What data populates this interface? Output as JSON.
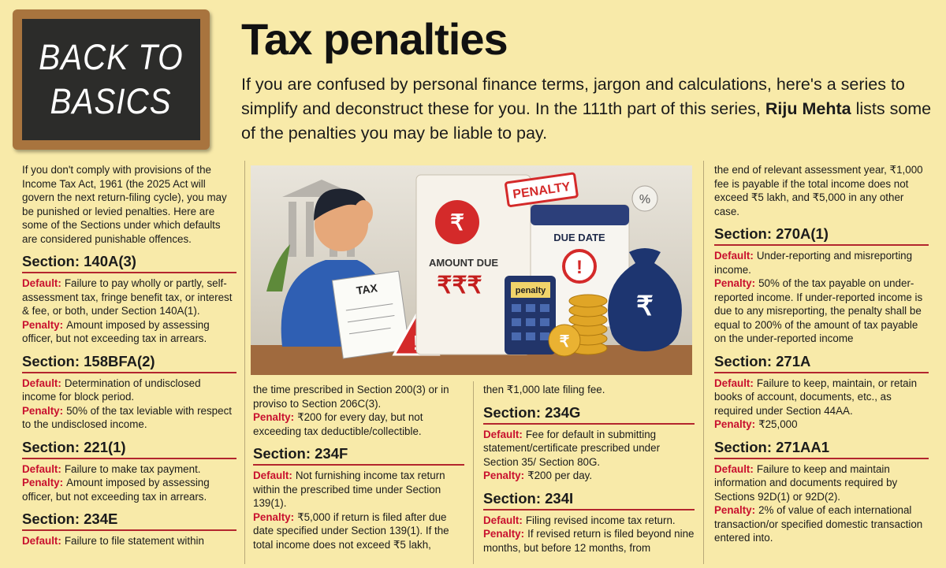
{
  "header": {
    "badge": [
      "BACK TO",
      "BASICS"
    ],
    "title": "Tax penalties",
    "intro": [
      "If you are confused by personal finance terms, jargon and calculations, here's a series to simplify and deconstruct these for you. In the 111th part of this series,",
      "Riju Mehta",
      "lists some of the penalties you may be liable to pay."
    ]
  },
  "illustration": {
    "tax": "TAX",
    "penalty_stamp": "PENALTY",
    "amount_due": "AMOUNT DUE",
    "rupees": "₹₹₹",
    "rupee": "₹",
    "due_date": "DUE DATE",
    "calculator": "penalty",
    "percent": "%",
    "alert": "!"
  },
  "columns": [
    {
      "items": [
        {
          "text": "If you don't comply with provisions of the Income Tax Act, 1961 (the 2025 Act will govern the next return-filing cycle), you may be punished or levied penalties. Here are some of the Sections under which defaults are considered punishable offences."
        },
        {
          "heading": "Section: 140A(3)"
        },
        {
          "label": "Default:",
          "text": "Failure to pay wholly or partly, self-assessment tax, fringe benefit tax, or interest & fee, or both, under Section 140A(1)."
        },
        {
          "label": "Penalty:",
          "text": "Amount imposed by assessing officer, but not exceeding tax in arrears."
        },
        {
          "heading": "Section: 158BFA(2)"
        },
        {
          "label": "Default:",
          "text": "Determination of undisclosed income for block period."
        },
        {
          "label": "Penalty:",
          "text": "50% of the tax leviable with respect to the undisclosed income."
        },
        {
          "heading": "Section: 221(1)"
        },
        {
          "label": "Default:",
          "text": "Failure to make tax payment."
        },
        {
          "label": "Penalty:",
          "text": "Amount imposed by assessing officer, but not exceeding tax in arrears."
        },
        {
          "heading": "Section: 234E"
        },
        {
          "label": "Default:",
          "text": "Failure to file statement within"
        }
      ]
    },
    {
      "items": [
        {
          "text": "the time prescribed in Section 200(3) or in proviso to Section 206C(3)."
        },
        {
          "label": "Penalty:",
          "text": "₹200 for every day, but not exceeding tax deductible/collectible."
        },
        {
          "heading": "Section: 234F"
        },
        {
          "label": "Default:",
          "text": "Not furnishing income tax return within the prescribed time under Section 139(1)."
        },
        {
          "label": "Penalty:",
          "text": "₹5,000 if return is filed after due date specified under Section 139(1). If the total income does not exceed ₹5 lakh,"
        }
      ]
    },
    {
      "items": [
        {
          "text": "then ₹1,000 late filing fee."
        },
        {
          "heading": "Section: 234G"
        },
        {
          "label": "Default:",
          "text": "Fee for default in submitting statement/certificate prescribed under Section 35/ Section 80G."
        },
        {
          "label": "Penalty:",
          "text": "₹200 per day."
        },
        {
          "heading": "Section: 234I"
        },
        {
          "label": "Default:",
          "text": "Filing revised income tax return."
        },
        {
          "label": "Penalty:",
          "text": "If revised return is filed beyond nine months, but before 12 months, from"
        }
      ]
    },
    {
      "items": [
        {
          "text": "the end of relevant assessment year, ₹1,000 fee is payable if the total income does not exceed ₹5 lakh, and ₹5,000 in any other case."
        },
        {
          "heading": "Section: 270A(1)"
        },
        {
          "label": "Default:",
          "text": "Under-reporting and misreporting income."
        },
        {
          "label": "Penalty:",
          "text": "50% of the tax payable on under-reported income. If under-reported income is due to any misreporting, the penalty shall be equal to 200% of the amount of tax payable on the under-reported income"
        },
        {
          "heading": "Section: 271A"
        },
        {
          "label": "Default:",
          "text": "Failure to keep, maintain, or retain books of account, documents, etc., as required under Section 44AA."
        },
        {
          "label": "Penalty:",
          "text": "₹25,000"
        },
        {
          "heading": "Section: 271AA1"
        },
        {
          "label": "Default:",
          "text": "Failure to keep and maintain information and documents required by Sections 92D(1) or 92D(2)."
        },
        {
          "label": "Penalty:",
          "text": "2% of value of each international transaction/or specified domestic transaction entered into."
        }
      ]
    }
  ]
}
